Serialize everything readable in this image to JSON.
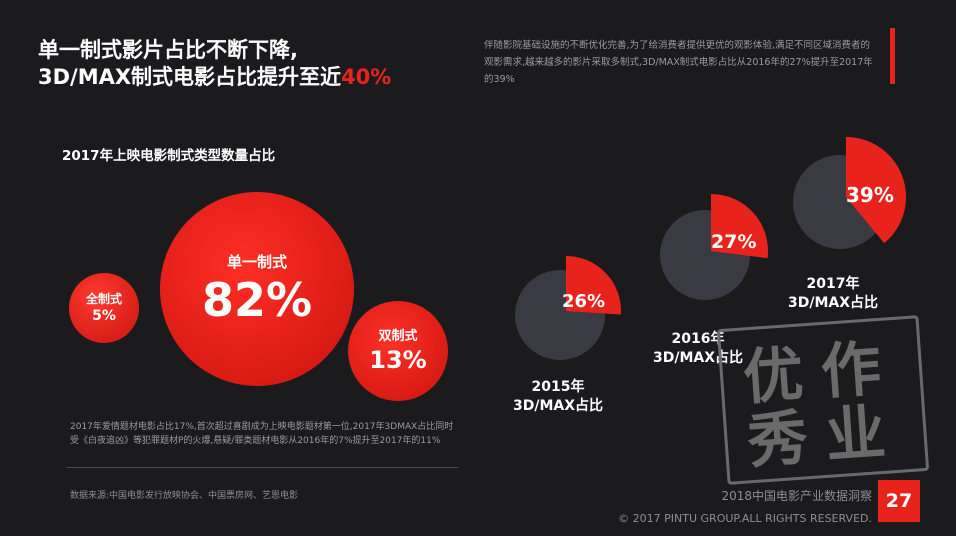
{
  "header": {
    "title_line1": "单一制式影片占比不断下降,",
    "title_line2_prefix": "3D/MAX制式电影占比提升至近",
    "title_line2_accent": "40%",
    "description": "伴随影院基础设施的不断优化完善,为了给消费者提供更优的观影体验,满足不同区域消费者的观影需求,越来越多的影片采取多制式,3D/MAX制式电影占比从2016年的27%提升至2017年的39%"
  },
  "left_section": {
    "title": "2017年上映电影制式类型数量占比",
    "bubbles": [
      {
        "label": "全制式",
        "value": "5%"
      },
      {
        "label": "单一制式",
        "value": "82%"
      },
      {
        "label": "双制式",
        "value": "13%"
      }
    ],
    "note": "2017年爱情题材电影占比17%,首次超过喜剧成为上映电影题材第一位,2017年3DMAX占比同时受《白夜追凶》等犯罪题材P的火爆,悬疑/罪类题材电影从2016年的7%提升至2017年的11%",
    "source": "数据来源:中国电影发行放映协会、中国票房网、艺恩电影"
  },
  "chart_data": {
    "type": "pie",
    "series": [
      {
        "category": "2015年 3D/MAX占比",
        "share": 26,
        "label": "26%"
      },
      {
        "category": "2016年 3D/MAX占比",
        "share": 27,
        "label": "27%"
      },
      {
        "category": "2017年 3D/MAX占比",
        "share": 39,
        "label": "39%"
      }
    ],
    "captions": [
      {
        "line1": "2015年",
        "line2": "3D/MAX占比"
      },
      {
        "line1": "2016年",
        "line2": "3D/MAX占比"
      },
      {
        "line1": "2017年",
        "line2": "3D/MAX占比"
      }
    ]
  },
  "stamp": {
    "text": "优作秀业"
  },
  "footer": {
    "report_title": "2018中国电影产业数据洞察",
    "copyright": "© 2017 PINTU GROUP.ALL RIGHTS RESERVED.",
    "page_number": "27"
  },
  "colors": {
    "accent": "#e8231c",
    "background": "#1b1b1e",
    "pie_base": "#3a3b42"
  }
}
